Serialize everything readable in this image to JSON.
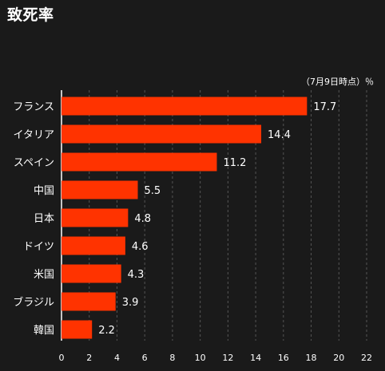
{
  "chart_data": {
    "type": "bar",
    "orientation": "horizontal",
    "title": "致死率",
    "note": "（7月9日時点）％",
    "categories": [
      "フランス",
      "イタリア",
      "スペイン",
      "中国",
      "日本",
      "ドイツ",
      "米国",
      "ブラジル",
      "韓国"
    ],
    "values": [
      17.7,
      14.4,
      11.2,
      5.5,
      4.8,
      4.6,
      4.3,
      3.9,
      2.2
    ],
    "value_labels": [
      "17.7",
      "14.4",
      "11.2",
      "5.5",
      "4.8",
      "4.6",
      "4.3",
      "3.9",
      "2.2"
    ],
    "xlim": [
      0,
      22
    ],
    "xticks": [
      0,
      2,
      4,
      6,
      8,
      10,
      12,
      14,
      16,
      18,
      20,
      22
    ],
    "xtick_labels": [
      "0",
      "2",
      "4",
      "6",
      "8",
      "10",
      "12",
      "14",
      "16",
      "18",
      "20",
      "22"
    ],
    "grid": "vertical-dashed",
    "bar_color": "#ff3300",
    "background_color": "#1a1a1a",
    "text_color": "#ffffff"
  }
}
